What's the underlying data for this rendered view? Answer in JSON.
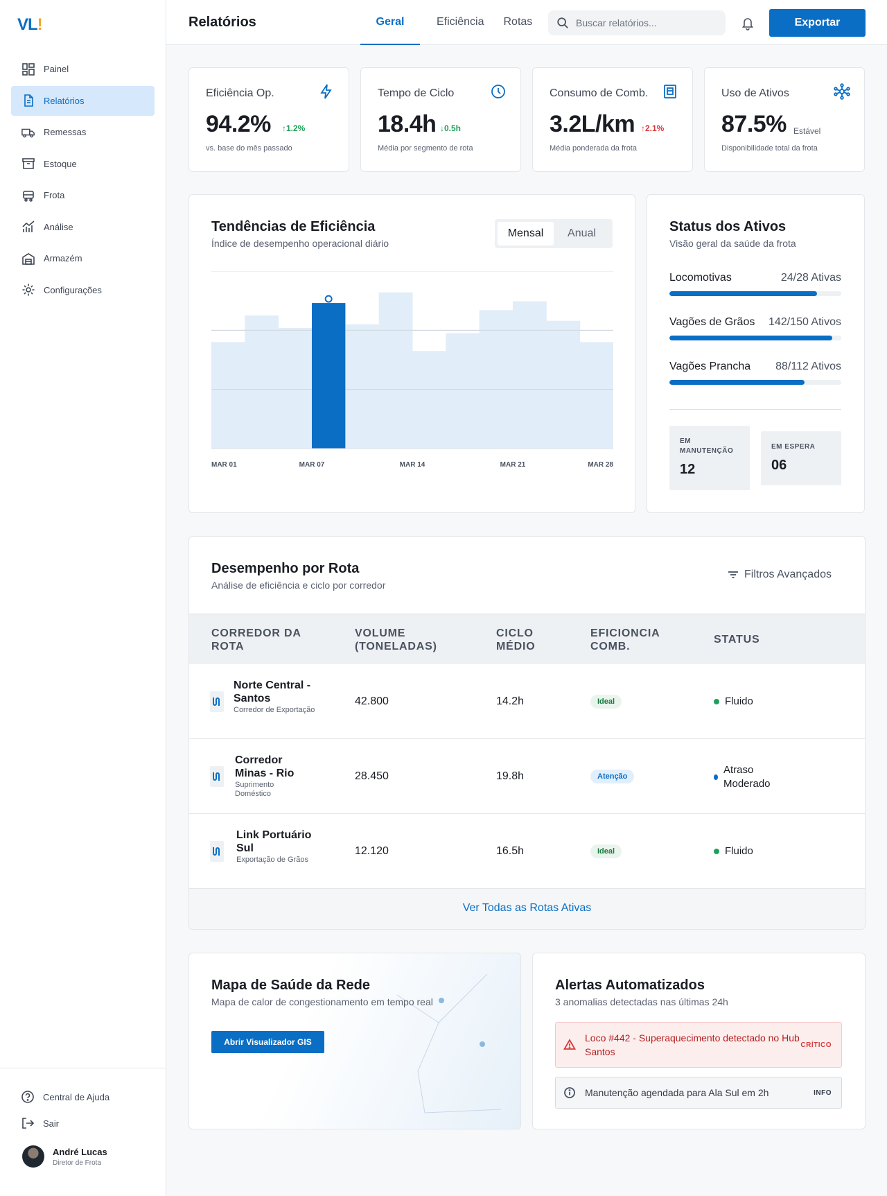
{
  "brand": {
    "logo": "VL",
    "logo_mark": "!"
  },
  "sidebar": {
    "items": [
      {
        "label": "Painel",
        "icon": "dashboard-icon",
        "active": false
      },
      {
        "label": "Relatórios",
        "icon": "document-icon",
        "active": true
      },
      {
        "label": "Remessas",
        "icon": "truck-icon",
        "active": false
      },
      {
        "label": "Estoque",
        "icon": "inventory-icon",
        "active": false
      },
      {
        "label": "Frota",
        "icon": "train-icon",
        "active": false
      },
      {
        "label": "Análise",
        "icon": "analytics-icon",
        "active": false
      },
      {
        "label": "Armazém",
        "icon": "warehouse-icon",
        "active": false
      },
      {
        "label": "Configurações",
        "icon": "gear-icon",
        "active": false
      }
    ],
    "help": "Central de Ajuda",
    "logout": "Sair",
    "user": {
      "name": "André Lucas",
      "role": "Diretor de Frota"
    }
  },
  "header": {
    "title": "Relatórios",
    "tabs": [
      "Geral",
      "Eficiência",
      "Rotas"
    ],
    "active_tab": "Geral",
    "search_placeholder": "Buscar relatórios...",
    "export_label": "Exportar"
  },
  "kpis": [
    {
      "title": "Eficiência Op.",
      "icon": "bolt-icon",
      "value": "94.2%",
      "delta": "↑1.2%",
      "delta_color": "#1fa05a",
      "sub": "vs. base do mês passado"
    },
    {
      "title": "Tempo de Ciclo",
      "icon": "clock-icon",
      "value": "18.4h",
      "delta": "↓0.5h",
      "delta_color": "#1fa05a",
      "sub": "Média por segmento de rota"
    },
    {
      "title": "Consumo de Comb.",
      "icon": "fuel-icon",
      "value": "3.2L/km",
      "delta": "↑2.1%",
      "delta_color": "#d63b3b",
      "sub": "Média ponderada da frota"
    },
    {
      "title": "Uso de Ativos",
      "icon": "network-icon",
      "value": "87.5%",
      "delta": "Estável",
      "delta_color": "#5a6270",
      "sub": "Disponibilidade total da frota"
    }
  ],
  "trends": {
    "title": "Tendências de Eficiência",
    "subtitle": "Índice de desempenho operacional diário",
    "toggle": [
      "Mensal",
      "Anual"
    ],
    "toggle_active": "Mensal"
  },
  "chart_data": {
    "type": "bar",
    "title": "Tendências de Eficiência",
    "x_ticks": [
      "MAR 01",
      "MAR 07",
      "MAR 14",
      "MAR 21",
      "MAR 28"
    ],
    "values": [
      60,
      75,
      68,
      82,
      70,
      88,
      55,
      65,
      78,
      83,
      72,
      60
    ],
    "highlight_index": 3,
    "ylim": [
      0,
      100
    ],
    "grid": true,
    "colors": {
      "bar": "#e1edf8",
      "highlight": "#0a6ec4"
    }
  },
  "assets": {
    "title": "Status dos Ativos",
    "subtitle": "Visão geral da saúde da frota",
    "rows": [
      {
        "name": "Locomotivas",
        "count": "24/28 Ativas",
        "fraction": 0.857
      },
      {
        "name": "Vagões de Grãos",
        "count": "142/150 Ativos",
        "fraction": 0.947
      },
      {
        "name": "Vagões Prancha",
        "count": "88/112 Ativos",
        "fraction": 0.786
      }
    ],
    "maintenance": {
      "label": "EM MANUTENÇÃO",
      "value": "12"
    },
    "waiting": {
      "label": "EM ESPERA",
      "value": "06"
    }
  },
  "routes": {
    "title": "Desempenho por Rota",
    "subtitle": "Análise de eficiência e ciclo por corredor",
    "filters_label": "Filtros Avançados",
    "columns": [
      "Corredor da Rota",
      "Volume (Toneladas)",
      "Ciclo Médio",
      "Eficioncia Comb.",
      "Status"
    ],
    "rows": [
      {
        "name": "Norte Central - Santos",
        "desc": "Corredor de Exportação",
        "volume": "42.800",
        "cycle": "14.2h",
        "efficiency": "Ideal",
        "eff_type": "ok",
        "status": "Fluido",
        "status_color": "#1fa05a"
      },
      {
        "name": "Corredor Minas - Rio",
        "desc": "Suprimento Doméstico",
        "volume": "28.450",
        "cycle": "19.8h",
        "efficiency": "Atenção",
        "eff_type": "warn",
        "status": "Atraso Moderado",
        "status_color": "#0a6ec4"
      },
      {
        "name": "Link Portuário Sul",
        "desc": "Exportação de Grãos",
        "volume": "12.120",
        "cycle": "16.5h",
        "efficiency": "Ideal",
        "eff_type": "ok",
        "status": "Fluido",
        "status_color": "#1fa05a"
      }
    ],
    "see_all": "Ver Todas as Rotas Ativas"
  },
  "map": {
    "title": "Mapa de Saúde da Rede",
    "subtitle": "Mapa de calor de congestionamento em tempo real",
    "button": "Abrir Visualizador GIS"
  },
  "alerts": {
    "title": "Alertas Automatizados",
    "subtitle": "3 anomalias detectadas nas últimas 24h",
    "items": [
      {
        "text": "Loco #442 - Superaquecimento detectado no Hub Santos",
        "tag": "CRÍTICO",
        "icon": "warning-icon"
      },
      {
        "text": "Manutenção agendada para Ala Sul em 2h",
        "tag": "INFO",
        "icon": "info-icon"
      }
    ]
  }
}
